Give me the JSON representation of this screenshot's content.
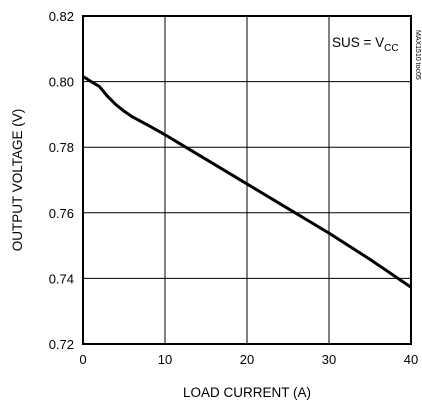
{
  "chart_data": {
    "type": "line",
    "title": "",
    "xlabel": "LOAD CURRENT (A)",
    "ylabel": "OUTPUT VOLTAGE (V)",
    "xlim": [
      0,
      40
    ],
    "ylim": [
      0.72,
      0.82
    ],
    "x_ticks": [
      0,
      10,
      20,
      30,
      40
    ],
    "y_ticks": [
      0.72,
      0.74,
      0.76,
      0.78,
      0.8,
      0.82
    ],
    "x_tick_labels": [
      "0",
      "10",
      "20",
      "30",
      "40"
    ],
    "y_tick_labels": [
      "0.72",
      "0.74",
      "0.76",
      "0.78",
      "0.80",
      "0.82"
    ],
    "grid": true,
    "annotation": {
      "text": "SUS = V",
      "subscript": "CC"
    },
    "side_label": "MAX1510 toc05",
    "series": [
      {
        "x": [
          0,
          0.5,
          1,
          2,
          3,
          4,
          5,
          6,
          8,
          10,
          12,
          15,
          20,
          25,
          30,
          35,
          40
        ],
        "y": [
          0.8015,
          0.8008,
          0.8,
          0.7985,
          0.7955,
          0.793,
          0.791,
          0.7893,
          0.7866,
          0.7838,
          0.7808,
          0.7763,
          0.7688,
          0.7613,
          0.7538,
          0.7458,
          0.7373
        ]
      }
    ],
    "colors": {
      "line": "#000000",
      "grid": "#000000",
      "background": "#ffffff"
    }
  }
}
